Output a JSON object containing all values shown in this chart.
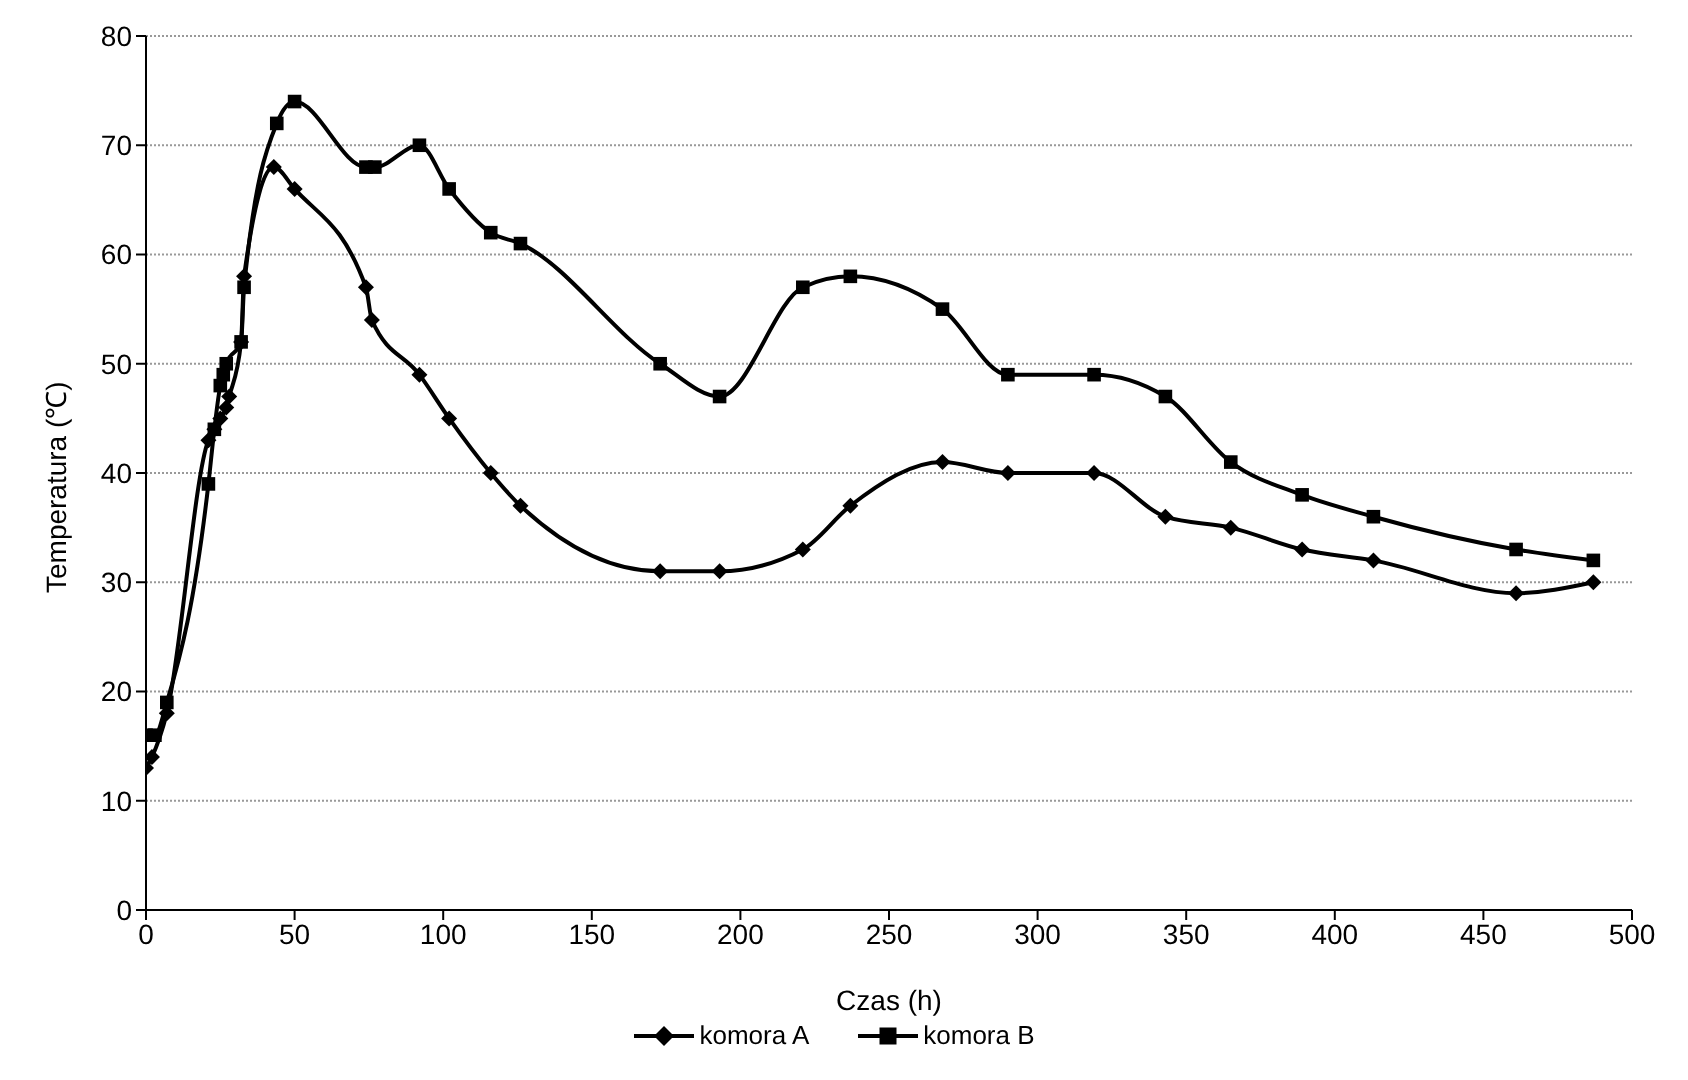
{
  "chart_data": {
    "type": "line",
    "xlabel": "Czas (h)",
    "ylabel": "Temperatura (℃)",
    "xlim": [
      0,
      500
    ],
    "xticks": [
      0,
      50,
      100,
      150,
      200,
      250,
      300,
      350,
      400,
      450,
      500
    ],
    "ylim": [
      0,
      80
    ],
    "yticks": [
      0,
      10,
      20,
      30,
      40,
      50,
      60,
      70,
      80
    ],
    "grid": "y",
    "legend": "bottom",
    "line_style": "solid",
    "series": [
      {
        "name": "komora A",
        "color": "#000000",
        "marker": "diamond",
        "x": [
          0,
          2,
          7,
          21,
          23,
          25,
          27,
          28,
          32,
          33,
          43,
          50,
          74,
          76,
          92,
          102,
          116,
          126,
          173,
          193,
          221,
          237,
          268,
          290,
          319,
          343,
          365,
          389,
          413,
          461,
          487
        ],
        "values": [
          13,
          14,
          18,
          43,
          44,
          45,
          46,
          47,
          52,
          58,
          68,
          66,
          57,
          54,
          49,
          45,
          40,
          37,
          31,
          31,
          33,
          37,
          41,
          40,
          40,
          36,
          35,
          33,
          32,
          29,
          30
        ]
      },
      {
        "name": "komora B",
        "color": "#000000",
        "marker": "square",
        "x": [
          0,
          3,
          7,
          21,
          23,
          25,
          26,
          27,
          32,
          33,
          44,
          50,
          74,
          77,
          92,
          102,
          116,
          126,
          173,
          193,
          221,
          237,
          268,
          290,
          319,
          343,
          365,
          389,
          413,
          461,
          487
        ],
        "values": [
          16,
          16,
          19,
          39,
          44,
          48,
          49,
          50,
          52,
          57,
          72,
          74,
          68,
          68,
          70,
          66,
          62,
          61,
          50,
          47,
          57,
          58,
          55,
          49,
          49,
          47,
          41,
          38,
          36,
          33,
          32
        ]
      }
    ]
  }
}
